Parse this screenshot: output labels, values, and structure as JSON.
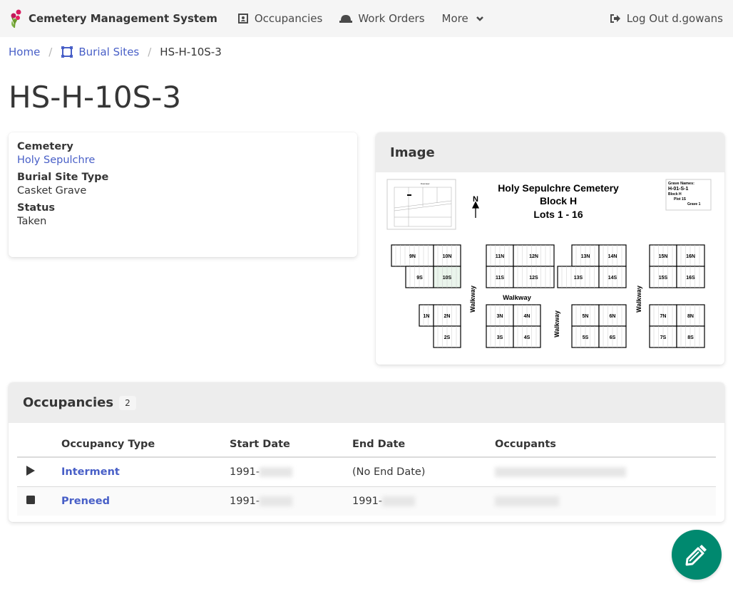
{
  "nav": {
    "brand": "Cemetery Management System",
    "occupancies": "Occupancies",
    "work_orders": "Work Orders",
    "more": "More",
    "logout": "Log Out d.gowans"
  },
  "breadcrumb": {
    "home": "Home",
    "burial_sites": "Burial Sites",
    "current": "HS-H-10S-3"
  },
  "title": "HS-H-10S-3",
  "info": {
    "cemetery_label": "Cemetery",
    "cemetery_value": "Holy Sepulchre",
    "type_label": "Burial Site Type",
    "type_value": "Casket Grave",
    "status_label": "Status",
    "status_value": "Taken"
  },
  "image": {
    "header": "Image",
    "map": {
      "title1": "Holy Sepulchre Cemetery",
      "title2": "Block H",
      "title3": "Lots 1 - 16",
      "north": "N",
      "overview": "Overview",
      "walkway": "Walkway",
      "legend": [
        "Grave Names:",
        "H-01-S-1",
        "Block H",
        "Plot 1S",
        "Grave 1"
      ],
      "lots": [
        "9N",
        "10N",
        "9S",
        "10S",
        "11N",
        "12N",
        "11S",
        "12S",
        "13N",
        "14N",
        "13S",
        "14S",
        "15N",
        "16N",
        "15S",
        "16S",
        "1N",
        "2N",
        "2S",
        "3N",
        "4N",
        "3S",
        "4S",
        "5N",
        "6N",
        "5S",
        "6S",
        "7N",
        "8N",
        "7S",
        "8S"
      ],
      "highlighted_lot": "10S",
      "highlight_color": "#eaf5ec"
    }
  },
  "occupancies": {
    "header": "Occupancies",
    "count": "2",
    "columns": [
      "Occupancy Type",
      "Start Date",
      "End Date",
      "Occupants"
    ],
    "rows": [
      {
        "icon": "play-icon",
        "type": "Interment",
        "start": "1991-",
        "end": "(No End Date)"
      },
      {
        "icon": "stop-icon",
        "type": "Preneed",
        "start": "1991-",
        "end": "1991-"
      }
    ]
  },
  "colors": {
    "link": "#485fc7",
    "fab": "#00896f",
    "navbar": "#f5f5f5"
  }
}
